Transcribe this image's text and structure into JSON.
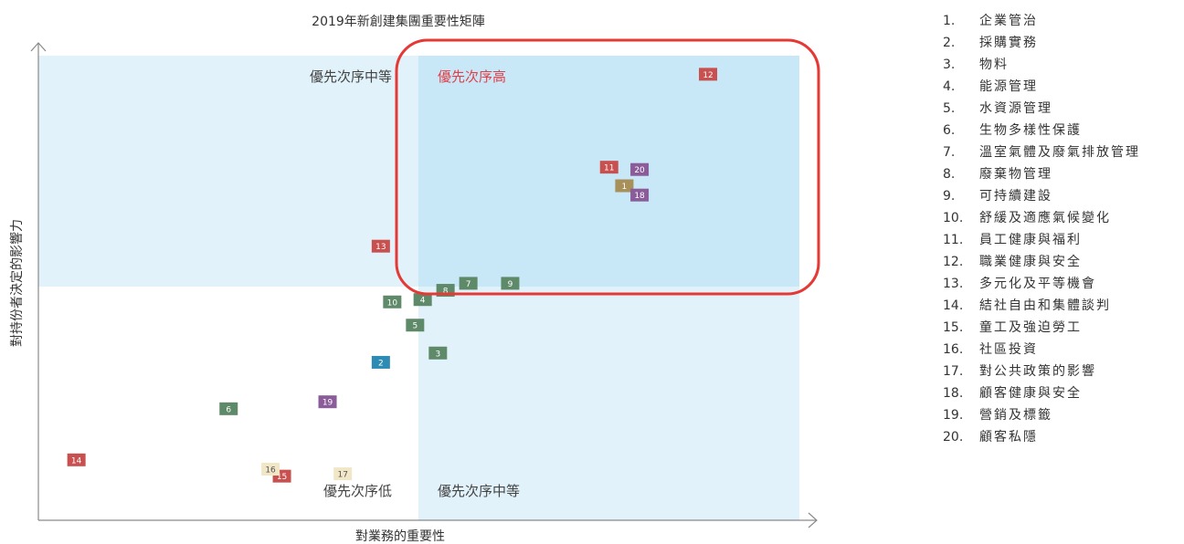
{
  "chart_data": {
    "type": "scatter",
    "title": "2019年新創建集團重要性矩陣",
    "xlabel": "對業務的重要性",
    "ylabel": "對持份者決定的影響力",
    "xlim": [
      0,
      10
    ],
    "ylim": [
      0,
      10
    ],
    "grid": false,
    "legend_position": "right",
    "quadrants": [
      {
        "label": "優先次序中等",
        "position": "top-left",
        "color": "#e1f2fa"
      },
      {
        "label": "優先次序高",
        "position": "top-right",
        "color": "#c8e8f7",
        "label_color": "#e0404a"
      },
      {
        "label": "優先次序低",
        "position": "bottom-left",
        "color": "#ffffff"
      },
      {
        "label": "優先次序中等",
        "position": "bottom-right",
        "color": "#e1f2fa"
      }
    ],
    "highlight": {
      "region": "優先次序高",
      "color": "#e53935"
    },
    "points": [
      {
        "id": "12",
        "x": 8.8,
        "y": 9.6,
        "color": "#c8504f"
      },
      {
        "id": "11",
        "x": 7.5,
        "y": 7.6,
        "color": "#c8504f"
      },
      {
        "id": "20",
        "x": 7.9,
        "y": 7.55,
        "color": "#8a5c99"
      },
      {
        "id": "1",
        "x": 7.7,
        "y": 7.2,
        "color": "#a8905a"
      },
      {
        "id": "18",
        "x": 7.9,
        "y": 7.0,
        "color": "#8a5c99"
      },
      {
        "id": "13",
        "x": 4.5,
        "y": 5.9,
        "color": "#c8504f"
      },
      {
        "id": "9",
        "x": 6.2,
        "y": 5.1,
        "color": "#5f8a6a"
      },
      {
        "id": "7",
        "x": 5.65,
        "y": 5.1,
        "color": "#5f8a6a"
      },
      {
        "id": "8",
        "x": 5.35,
        "y": 4.95,
        "color": "#5f8a6a"
      },
      {
        "id": "4",
        "x": 5.05,
        "y": 4.75,
        "color": "#5f8a6a"
      },
      {
        "id": "10",
        "x": 4.65,
        "y": 4.7,
        "color": "#5f8a6a"
      },
      {
        "id": "5",
        "x": 4.95,
        "y": 4.2,
        "color": "#5f8a6a"
      },
      {
        "id": "3",
        "x": 5.25,
        "y": 3.6,
        "color": "#5f8a6a"
      },
      {
        "id": "2",
        "x": 4.5,
        "y": 3.4,
        "color": "#2e8bb3"
      },
      {
        "id": "19",
        "x": 3.8,
        "y": 2.55,
        "color": "#8a5c99"
      },
      {
        "id": "6",
        "x": 2.5,
        "y": 2.4,
        "color": "#5f8a6a"
      },
      {
        "id": "14",
        "x": 0.5,
        "y": 1.3,
        "color": "#c8504f"
      },
      {
        "id": "15",
        "x": 3.2,
        "y": 0.95,
        "color": "#c8504f"
      },
      {
        "id": "16",
        "x": 3.05,
        "y": 1.1,
        "color": "#f1e6c6"
      },
      {
        "id": "17",
        "x": 4.0,
        "y": 1.0,
        "color": "#f1e6c6"
      }
    ]
  },
  "legend": {
    "items": [
      {
        "num": "1.",
        "label": "企業管治"
      },
      {
        "num": "2.",
        "label": "採購實務"
      },
      {
        "num": "3.",
        "label": "物料"
      },
      {
        "num": "4.",
        "label": "能源管理"
      },
      {
        "num": "5.",
        "label": "水資源管理"
      },
      {
        "num": "6.",
        "label": "生物多樣性保護"
      },
      {
        "num": "7.",
        "label": "溫室氣體及廢氣排放管理"
      },
      {
        "num": "8.",
        "label": "廢棄物管理"
      },
      {
        "num": "9.",
        "label": "可持續建設"
      },
      {
        "num": "10.",
        "label": "舒緩及適應氣候變化"
      },
      {
        "num": "11.",
        "label": "員工健康與福利"
      },
      {
        "num": "12.",
        "label": "職業健康與安全"
      },
      {
        "num": "13.",
        "label": "多元化及平等機會"
      },
      {
        "num": "14.",
        "label": "結社自由和集體談判"
      },
      {
        "num": "15.",
        "label": "童工及強迫勞工"
      },
      {
        "num": "16.",
        "label": "社區投資"
      },
      {
        "num": "17.",
        "label": "對公共政策的影響"
      },
      {
        "num": "18.",
        "label": "顧客健康與安全"
      },
      {
        "num": "19.",
        "label": "營銷及標籤"
      },
      {
        "num": "20.",
        "label": "顧客私隱"
      }
    ]
  }
}
